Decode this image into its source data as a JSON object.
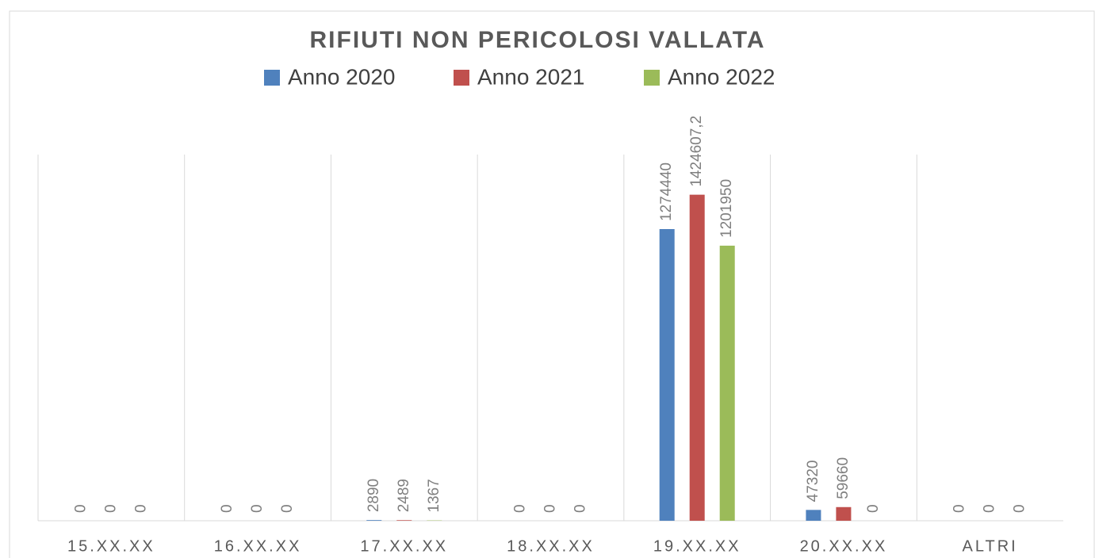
{
  "chart_data": {
    "type": "bar",
    "title": "RIFIUTI NON PERICOLOSI VALLATA",
    "categories": [
      "15.XX.XX",
      "16.XX.XX",
      "17.XX.XX",
      "18.XX.XX",
      "19.XX.XX",
      "20.XX.XX",
      "ALTRI"
    ],
    "series": [
      {
        "name": "Anno 2020",
        "color": "#4f81bd",
        "values": [
          0,
          0,
          2890,
          0,
          1274440,
          47320,
          0
        ]
      },
      {
        "name": "Anno 2021",
        "color": "#c0504d",
        "values": [
          0,
          0,
          2489,
          0,
          1424607.2,
          59660,
          0
        ],
        "value_labels": [
          "0",
          "0",
          "2489",
          "0",
          "1424607,2",
          "59660",
          "0"
        ]
      },
      {
        "name": "Anno 2022",
        "color": "#9bbb59",
        "values": [
          0,
          0,
          1367,
          0,
          1201950,
          0,
          0
        ]
      }
    ],
    "ylim": [
      0,
      1600000
    ],
    "legend": "top"
  }
}
